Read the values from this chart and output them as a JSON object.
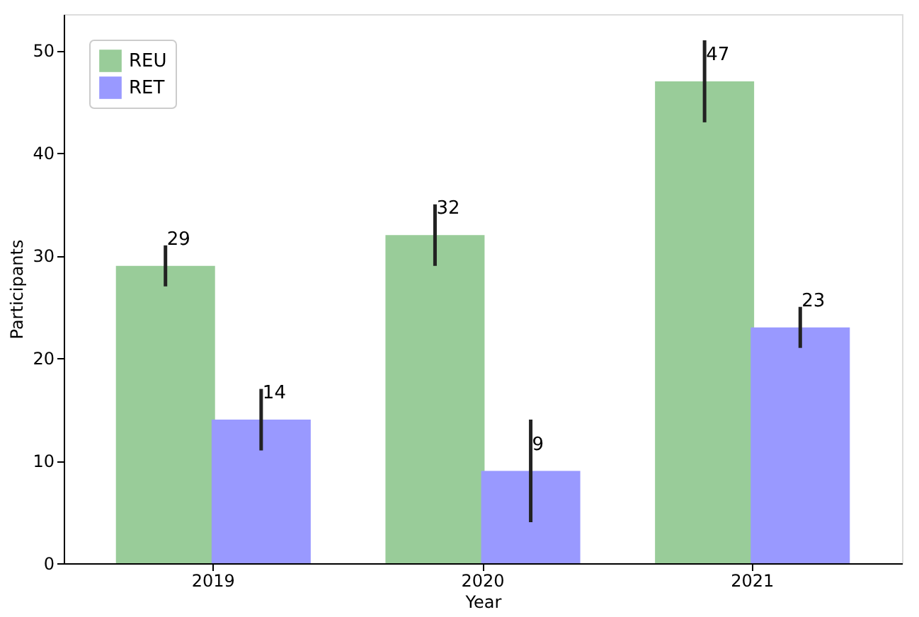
{
  "chart_data": {
    "type": "bar",
    "xlabel": "Year",
    "ylabel": "Participants",
    "categories": [
      "2019",
      "2020",
      "2021"
    ],
    "series": [
      {
        "name": "REU",
        "color": "#99cc99",
        "values": [
          29,
          32,
          47
        ],
        "errors": [
          2,
          3,
          4
        ]
      },
      {
        "name": "RET",
        "color": "#9999ff",
        "values": [
          14,
          9,
          23
        ],
        "errors": [
          3,
          5,
          2
        ]
      }
    ],
    "ylim": [
      0,
      53.55
    ],
    "yticks": [
      0,
      10,
      20,
      30,
      40,
      50
    ],
    "grid": false,
    "legend": "top left",
    "data_labels": true
  }
}
